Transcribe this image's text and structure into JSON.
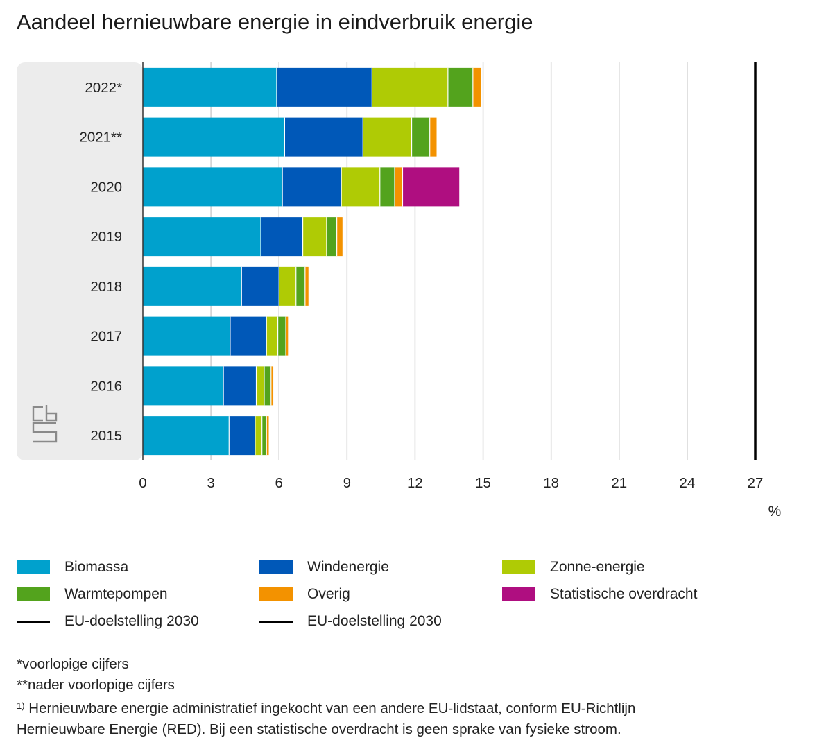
{
  "title": "Aandeel hernieuwbare energie in eindverbruik energie",
  "unit_label": "%",
  "chart_data": {
    "type": "bar",
    "orientation": "horizontal",
    "stacked": true,
    "title": "Aandeel hernieuwbare energie in eindverbruik energie",
    "xlabel": "%",
    "ylabel": "",
    "xlim": [
      0,
      27
    ],
    "xticks": [
      "0",
      "3",
      "6",
      "9",
      "12",
      "15",
      "18",
      "21",
      "24",
      "27"
    ],
    "categories": [
      "2022*",
      "2021**",
      "2020",
      "2019",
      "2018",
      "2017",
      "2016",
      "2015"
    ],
    "series": [
      {
        "name": "Biomassa",
        "color": "#00a1cd",
        "values": [
          5.9,
          6.25,
          6.15,
          5.2,
          4.35,
          3.85,
          3.55,
          3.8
        ]
      },
      {
        "name": "Windenergie",
        "color": "#0058b8",
        "values": [
          4.2,
          3.45,
          2.6,
          1.85,
          1.65,
          1.6,
          1.45,
          1.15
        ]
      },
      {
        "name": "Zonne-energie",
        "color": "#afcb05",
        "values": [
          3.35,
          2.15,
          1.7,
          1.05,
          0.75,
          0.5,
          0.35,
          0.3
        ]
      },
      {
        "name": "Warmtepompen",
        "color": "#53a31d",
        "values": [
          1.1,
          0.8,
          0.65,
          0.45,
          0.4,
          0.35,
          0.3,
          0.2
        ]
      },
      {
        "name": "Overig",
        "color": "#f39200",
        "values": [
          0.35,
          0.3,
          0.35,
          0.25,
          0.15,
          0.1,
          0.1,
          0.1
        ]
      },
      {
        "name": "Statistische overdracht",
        "color": "#af0e80",
        "values": [
          0,
          0,
          2.5,
          0,
          0,
          0,
          0,
          0
        ]
      }
    ],
    "reference_line": {
      "name": "EU-doelstelling 2030",
      "value": 27,
      "color": "#000000"
    },
    "grid": true,
    "legend_position": "bottom"
  },
  "legend": [
    {
      "label": "Biomassa",
      "color": "#00a1cd",
      "kind": "bar"
    },
    {
      "label": "Windenergie",
      "color": "#0058b8",
      "kind": "bar"
    },
    {
      "label": "Zonne-energie",
      "color": "#afcb05",
      "kind": "bar"
    },
    {
      "label": "Warmtepompen",
      "color": "#53a31d",
      "kind": "bar"
    },
    {
      "label": "Overig",
      "color": "#f39200",
      "kind": "bar"
    },
    {
      "label": "Statistische overdracht",
      "color": "#af0e80",
      "kind": "bar"
    },
    {
      "label": "EU-doelstelling 2030",
      "color": "#000000",
      "kind": "line"
    },
    {
      "label": "EU-doelstelling 2030",
      "color": "#000000",
      "kind": "line"
    }
  ],
  "notes": {
    "note1": "*voorlopige cijfers",
    "note2": "**nader voorlopige cijfers",
    "footnote_marker": "1)",
    "footnote_line1": "Hernieuwbare energie administratief ingekocht van een andere EU-lidstaat, conform EU-Richtlijn",
    "footnote_line2": "Hernieuwbare Energie (RED). Bij een statistische overdracht is geen sprake van fysieke stroom."
  }
}
